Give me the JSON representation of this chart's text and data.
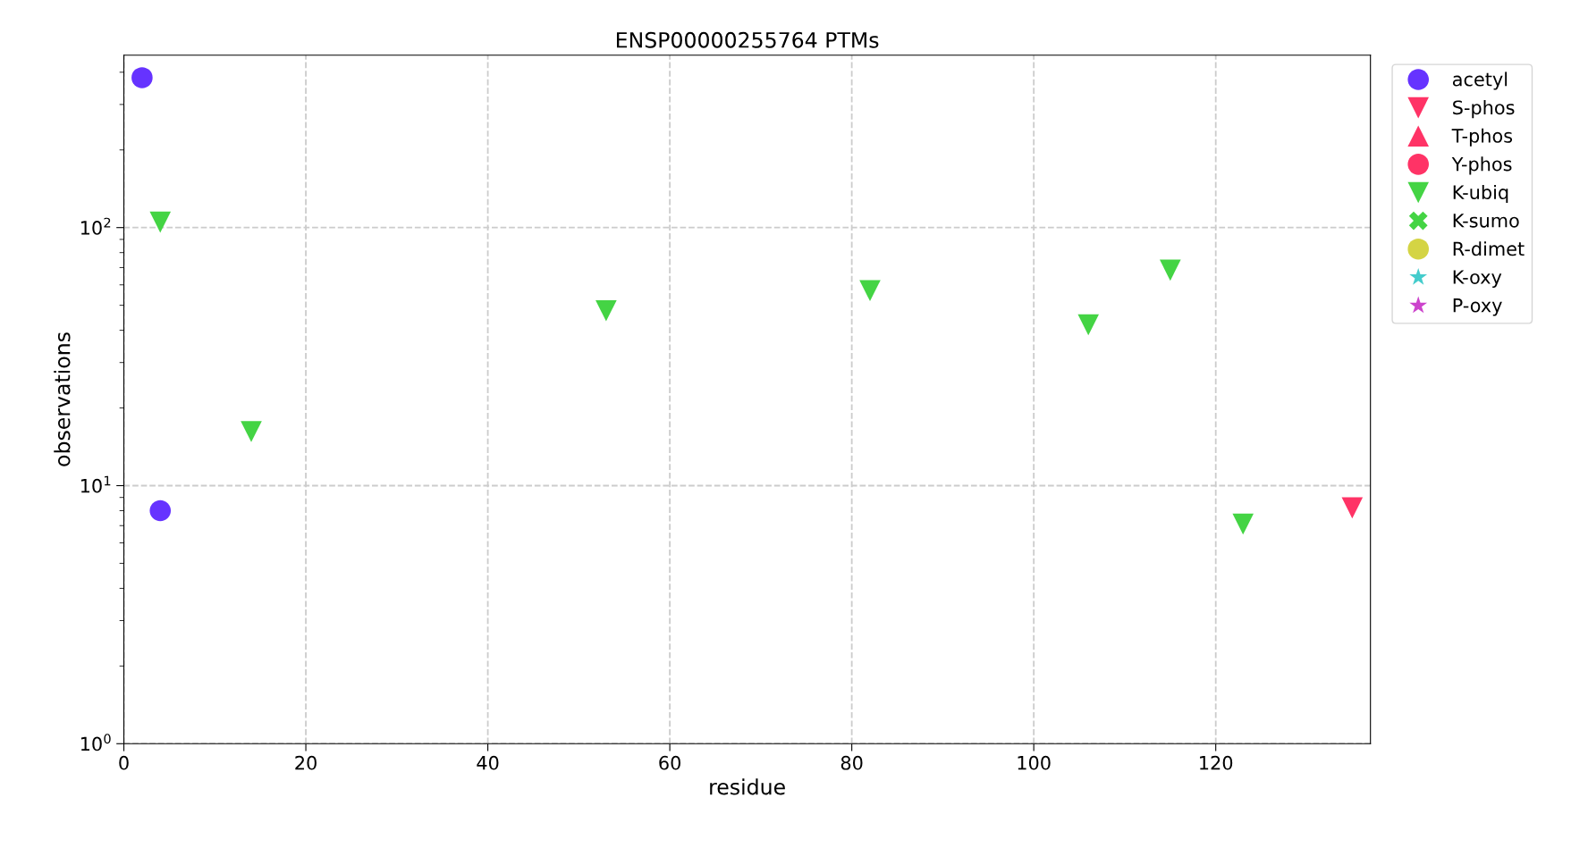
{
  "chart_data": {
    "type": "scatter",
    "title": "ENSP00000255764 PTMs",
    "xlabel": "residue",
    "ylabel": "observations",
    "log": "y",
    "xlim": [
      0,
      137
    ],
    "ylim": [
      1,
      466
    ],
    "xticks": [
      0,
      20,
      40,
      60,
      80,
      100,
      120
    ],
    "yticks": [
      {
        "value": 1,
        "label": "10$^{0}$"
      },
      {
        "value": 10,
        "label": "10$^{1}$"
      },
      {
        "value": 100,
        "label": "10$^{2}$"
      }
    ],
    "grid": true,
    "legend": "right",
    "series": [
      {
        "name": "acetyl",
        "color": "#6633ff",
        "marker": "circle",
        "x": [
          2,
          4
        ],
        "values": [
          381,
          8
        ]
      },
      {
        "name": "S-phos",
        "color": "#ff3366",
        "marker": "triangle_down",
        "x": [
          135
        ],
        "values": [
          8.2
        ]
      },
      {
        "name": "T-phos",
        "color": "#ff3366",
        "marker": "triangle"
      },
      {
        "name": "Y-phos",
        "color": "#ff3366",
        "marker": "circle"
      },
      {
        "name": "K-ubiq",
        "color": "#44d444",
        "marker": "triangle_down",
        "x": [
          4,
          14,
          53,
          82,
          106,
          115,
          123
        ],
        "values": [
          105,
          16.2,
          47.6,
          57,
          42,
          68.4,
          7.1
        ]
      },
      {
        "name": "K-sumo",
        "color": "#44d444",
        "marker": "cross"
      },
      {
        "name": "R-dimet",
        "color": "#d4d444",
        "marker": "circle"
      },
      {
        "name": "K-oxy",
        "color": "#44cccc",
        "marker": "star"
      },
      {
        "name": "P-oxy",
        "color": "#cc44cc",
        "marker": "star"
      }
    ]
  }
}
